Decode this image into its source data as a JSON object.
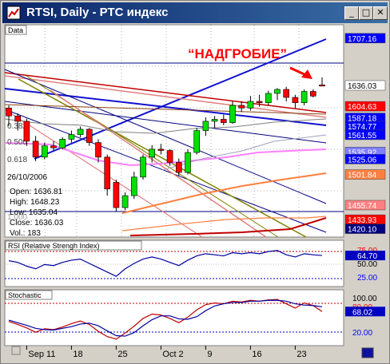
{
  "window": {
    "title": "RTSI, Daily - РТС индекс",
    "minimize_glyph": "_",
    "maximize_glyph": "□",
    "close_glyph": "✕"
  },
  "panes": {
    "price_label": "Data",
    "rsi_label": "RSI (Relative Strengh Index)",
    "stoch_label": "Stochastic"
  },
  "annotation": {
    "text": "“НАДГРОБИЕ”"
  },
  "info": {
    "date": "26/10/2006",
    "open": "Open: 1636.81",
    "high": "High: 1648.23",
    "low": "Low: 1635.04",
    "close": "Close: 1636.03",
    "vol": "Vol.: 183"
  },
  "fib_labels": [
    "0.382",
    "0.500",
    "0.618",
    "1.000"
  ],
  "chart_data": [
    {
      "type": "candlestick",
      "name": "price",
      "dates": [
        "Sep 7",
        "Sep 8",
        "Sep 11",
        "Sep 12",
        "Sep 13",
        "Sep 14",
        "Sep 15",
        "Sep 18",
        "Sep 19",
        "Sep 20",
        "Sep 21",
        "Sep 22",
        "Sep 25",
        "Sep 26",
        "Sep 27",
        "Sep 28",
        "Sep 29",
        "Oct 2",
        "Oct 3",
        "Oct 4",
        "Oct 5",
        "Oct 6",
        "Oct 9",
        "Oct 10",
        "Oct 11",
        "Oct 12",
        "Oct 13",
        "Oct 16",
        "Oct 17",
        "Oct 18",
        "Oct 19",
        "Oct 20",
        "Oct 23",
        "Oct 24",
        "Oct 25",
        "Oct 26"
      ],
      "ohlc": [
        [
          1602,
          1606,
          1575,
          1590
        ],
        [
          1590,
          1594,
          1568,
          1582
        ],
        [
          1582,
          1586,
          1545,
          1552
        ],
        [
          1552,
          1560,
          1522,
          1528
        ],
        [
          1528,
          1550,
          1525,
          1545
        ],
        [
          1545,
          1552,
          1538,
          1542
        ],
        [
          1542,
          1558,
          1540,
          1555
        ],
        [
          1555,
          1568,
          1550,
          1562
        ],
        [
          1562,
          1574,
          1558,
          1570
        ],
        [
          1570,
          1572,
          1545,
          1550
        ],
        [
          1550,
          1555,
          1520,
          1528
        ],
        [
          1528,
          1532,
          1470,
          1480
        ],
        [
          1490,
          1494,
          1446,
          1452
        ],
        [
          1452,
          1475,
          1448,
          1470
        ],
        [
          1470,
          1506,
          1465,
          1498
        ],
        [
          1498,
          1532,
          1494,
          1528
        ],
        [
          1528,
          1546,
          1520,
          1540
        ],
        [
          1540,
          1548,
          1532,
          1538
        ],
        [
          1538,
          1540,
          1515,
          1520
        ],
        [
          1520,
          1526,
          1500,
          1505
        ],
        [
          1505,
          1540,
          1502,
          1535
        ],
        [
          1535,
          1572,
          1532,
          1568
        ],
        [
          1568,
          1588,
          1560,
          1582
        ],
        [
          1582,
          1590,
          1572,
          1585
        ],
        [
          1585,
          1592,
          1576,
          1580
        ],
        [
          1580,
          1612,
          1578,
          1606
        ],
        [
          1606,
          1612,
          1596,
          1602
        ],
        [
          1602,
          1620,
          1598,
          1612
        ],
        [
          1612,
          1622,
          1604,
          1610
        ],
        [
          1610,
          1628,
          1606,
          1624
        ],
        [
          1624,
          1632,
          1614,
          1630
        ],
        [
          1630,
          1634,
          1612,
          1618
        ],
        [
          1618,
          1622,
          1602,
          1610
        ],
        [
          1610,
          1630,
          1606,
          1627
        ],
        [
          1627,
          1630,
          1618,
          1620
        ],
        [
          1636.81,
          1648.23,
          1635.04,
          1636.03
        ]
      ],
      "y_axis_ticks": [
        1707.16,
        1636.03,
        1604.63,
        1587.18,
        1574.77,
        1561.55,
        1535.92,
        1525.06,
        1501.84,
        1455.74,
        1433.93,
        1420.1
      ],
      "y_range": [
        1410,
        1725
      ]
    },
    {
      "type": "line",
      "name": "RSI (Relative Strengh Index)",
      "y_range": [
        10,
        90
      ],
      "y_axis_ticks": [
        75.0,
        64.7,
        50.0,
        25.0
      ],
      "values": [
        55,
        52,
        45,
        40,
        48,
        46,
        52,
        56,
        58,
        50,
        42,
        34,
        26,
        40,
        50,
        58,
        62,
        58,
        52,
        46,
        56,
        64,
        68,
        66,
        64,
        70,
        68,
        70,
        68,
        72,
        74,
        66,
        62,
        68,
        66,
        64.7
      ]
    },
    {
      "type": "line",
      "name": "Stochastic",
      "y_range": [
        0,
        100
      ],
      "y_axis_ticks": [
        100.0,
        80.0,
        68.02,
        20.0
      ],
      "k": [
        45,
        38,
        30,
        20,
        28,
        26,
        32,
        40,
        46,
        38,
        22,
        10,
        4,
        18,
        34,
        52,
        62,
        60,
        52,
        42,
        55,
        72,
        84,
        88,
        86,
        92,
        90,
        94,
        92,
        95,
        96,
        86,
        76,
        88,
        82,
        68.02
      ],
      "d": [
        48,
        42,
        36,
        29,
        26,
        25,
        29,
        33,
        39,
        41,
        35,
        23,
        12,
        11,
        19,
        35,
        49,
        58,
        58,
        51,
        50,
        56,
        70,
        81,
        86,
        89,
        89,
        92,
        92,
        94,
        94,
        92,
        86,
        83,
        82,
        79
      ]
    }
  ],
  "x_axis": {
    "labels": [
      "Sep 11",
      "18",
      "25",
      "Oct 2",
      "9",
      "16",
      "23"
    ]
  }
}
